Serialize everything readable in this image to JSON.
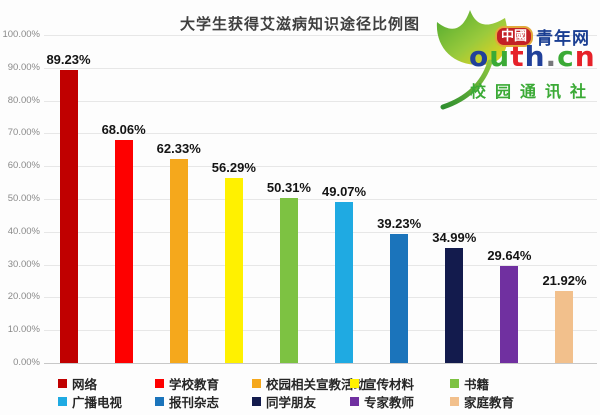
{
  "title": "大学生获得艾滋病知识途径比例图",
  "logo": {
    "badge_text": "中國",
    "brand_text": "青年网",
    "brand_color": "#1a3e92",
    "badge_bg": "#c32026",
    "badge_border": "#e2a93b",
    "wordmark": [
      {
        "char": "o",
        "color": "#21409a"
      },
      {
        "char": "u",
        "color": "#3aaa35"
      },
      {
        "char": "t",
        "color": "#e62129"
      },
      {
        "char": "h",
        "color": "#21409a"
      },
      {
        "char": ".",
        "color": "#77787b"
      },
      {
        "char": "c",
        "color": "#3aaa35"
      },
      {
        "char": "n",
        "color": "#e62129"
      }
    ],
    "tagline": "校园通讯社",
    "tagline_color": "#3baa36",
    "leaf_icon": "ginkgo-leaf-icon"
  },
  "chart_data": {
    "type": "bar",
    "title": "大学生获得艾滋病知识途径比例图",
    "categories": [
      "网络",
      "学校教育",
      "校园相关宣教活动",
      "宣传材料",
      "书籍",
      "广播电视",
      "报刊杂志",
      "同学朋友",
      "专家教师",
      "家庭教育"
    ],
    "values": [
      89.23,
      68.06,
      62.33,
      56.29,
      50.31,
      49.07,
      39.23,
      34.99,
      29.64,
      21.92
    ],
    "value_labels": [
      "89.23%",
      "68.06%",
      "62.33%",
      "56.29%",
      "50.31%",
      "49.07%",
      "39.23%",
      "34.99%",
      "29.64%",
      "21.92%"
    ],
    "colors": [
      "#c00000",
      "#fe0000",
      "#f5a81c",
      "#fff100",
      "#7dc242",
      "#1faae2",
      "#1b74bb",
      "#131b4d",
      "#7030a0",
      "#f2c08c"
    ],
    "ylim": [
      0,
      100
    ],
    "yticks": [
      "100.00%",
      "90.00%",
      "80.00%",
      "70.00%",
      "60.00%",
      "50.00%",
      "40.00%",
      "30.00%",
      "20.00%",
      "10.00%",
      "0.00%"
    ],
    "grid": true,
    "legend_position": "bottom"
  }
}
